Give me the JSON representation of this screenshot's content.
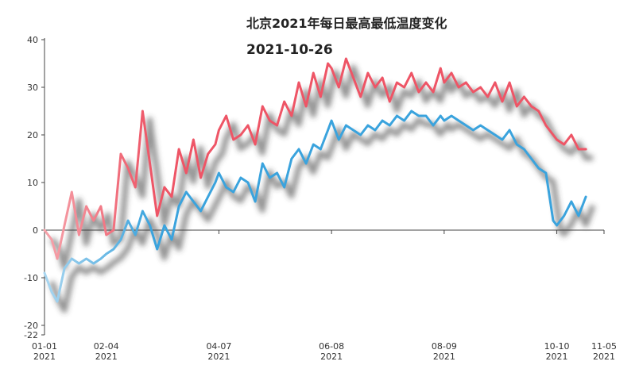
{
  "title": "北京2021年每日最高最低温度变化",
  "current_date": "2021-10-26",
  "chart_data": {
    "type": "line",
    "title": "北京2021年每日最高最低温度变化",
    "xlabel": "",
    "ylabel": "",
    "ylim": [
      -22,
      40
    ],
    "xlim": [
      "2021-01-01",
      "2021-11-05"
    ],
    "y_ticks": [
      "40",
      "30",
      "20",
      "10",
      "0",
      "-10",
      "-20",
      "-22"
    ],
    "x_ticks": [
      {
        "date": "01-01",
        "year": "2021"
      },
      {
        "date": "02-04",
        "year": "2021"
      },
      {
        "date": "04-07",
        "year": "2021"
      },
      {
        "date": "06-08",
        "year": "2021"
      },
      {
        "date": "08-09",
        "year": "2021"
      },
      {
        "date": "10-10",
        "year": "2021"
      },
      {
        "date": "11-05",
        "year": "2021"
      }
    ],
    "grid": false,
    "series": [
      {
        "name": "",
        "color": "#ee5566",
        "x": [
          "2021-01-01",
          "2021-01-05",
          "2021-01-08",
          "2021-01-12",
          "2021-01-16",
          "2021-01-20",
          "2021-01-24",
          "2021-01-28",
          "2021-02-01",
          "2021-02-04",
          "2021-02-08",
          "2021-02-12",
          "2021-02-16",
          "2021-02-20",
          "2021-02-24",
          "2021-02-28",
          "2021-03-04",
          "2021-03-08",
          "2021-03-12",
          "2021-03-16",
          "2021-03-20",
          "2021-03-24",
          "2021-03-28",
          "2021-04-01",
          "2021-04-05",
          "2021-04-07",
          "2021-04-11",
          "2021-04-15",
          "2021-04-19",
          "2021-04-23",
          "2021-04-27",
          "2021-05-01",
          "2021-05-05",
          "2021-05-09",
          "2021-05-13",
          "2021-05-17",
          "2021-05-21",
          "2021-05-25",
          "2021-05-29",
          "2021-06-02",
          "2021-06-06",
          "2021-06-08",
          "2021-06-12",
          "2021-06-16",
          "2021-06-20",
          "2021-06-24",
          "2021-06-28",
          "2021-07-02",
          "2021-07-06",
          "2021-07-10",
          "2021-07-14",
          "2021-07-18",
          "2021-07-22",
          "2021-07-26",
          "2021-07-30",
          "2021-08-03",
          "2021-08-07",
          "2021-08-09",
          "2021-08-13",
          "2021-08-17",
          "2021-08-21",
          "2021-08-25",
          "2021-08-29",
          "2021-09-02",
          "2021-09-06",
          "2021-09-10",
          "2021-09-14",
          "2021-09-18",
          "2021-09-22",
          "2021-09-26",
          "2021-09-30",
          "2021-10-04",
          "2021-10-08",
          "2021-10-10",
          "2021-10-14",
          "2021-10-18",
          "2021-10-22",
          "2021-10-26"
        ],
        "values": [
          0,
          -2,
          -6,
          1,
          8,
          -1,
          5,
          2,
          5,
          -1,
          0,
          16,
          13,
          9,
          25,
          14,
          3,
          9,
          7,
          17,
          12,
          19,
          11,
          16,
          18,
          21,
          24,
          19,
          20,
          22,
          18,
          26,
          23,
          22,
          27,
          24,
          31,
          26,
          33,
          28,
          35,
          34,
          30,
          36,
          32,
          28,
          33,
          30,
          32,
          27,
          31,
          30,
          33,
          29,
          31,
          29,
          34,
          31,
          33,
          30,
          31,
          29,
          30,
          28,
          31,
          27,
          31,
          26,
          28,
          26,
          25,
          22,
          20,
          19,
          18,
          20,
          17,
          17
        ]
      },
      {
        "name": "",
        "color": "#3aa3dd",
        "x": [
          "2021-01-01",
          "2021-01-05",
          "2021-01-08",
          "2021-01-12",
          "2021-01-16",
          "2021-01-20",
          "2021-01-24",
          "2021-01-28",
          "2021-02-01",
          "2021-02-04",
          "2021-02-08",
          "2021-02-12",
          "2021-02-16",
          "2021-02-20",
          "2021-02-24",
          "2021-02-28",
          "2021-03-04",
          "2021-03-08",
          "2021-03-12",
          "2021-03-16",
          "2021-03-20",
          "2021-03-24",
          "2021-03-28",
          "2021-04-01",
          "2021-04-05",
          "2021-04-07",
          "2021-04-11",
          "2021-04-15",
          "2021-04-19",
          "2021-04-23",
          "2021-04-27",
          "2021-05-01",
          "2021-05-05",
          "2021-05-09",
          "2021-05-13",
          "2021-05-17",
          "2021-05-21",
          "2021-05-25",
          "2021-05-29",
          "2021-06-02",
          "2021-06-06",
          "2021-06-08",
          "2021-06-12",
          "2021-06-16",
          "2021-06-20",
          "2021-06-24",
          "2021-06-28",
          "2021-07-02",
          "2021-07-06",
          "2021-07-10",
          "2021-07-14",
          "2021-07-18",
          "2021-07-22",
          "2021-07-26",
          "2021-07-30",
          "2021-08-03",
          "2021-08-07",
          "2021-08-09",
          "2021-08-13",
          "2021-08-17",
          "2021-08-21",
          "2021-08-25",
          "2021-08-29",
          "2021-09-02",
          "2021-09-06",
          "2021-09-10",
          "2021-09-14",
          "2021-09-18",
          "2021-09-22",
          "2021-09-26",
          "2021-09-30",
          "2021-10-04",
          "2021-10-08",
          "2021-10-10",
          "2021-10-14",
          "2021-10-18",
          "2021-10-22",
          "2021-10-26"
        ],
        "values": [
          -9,
          -13,
          -15,
          -8,
          -6,
          -7,
          -6,
          -7,
          -6,
          -5,
          -4,
          -2,
          2,
          -1,
          4,
          1,
          -4,
          1,
          -2,
          5,
          8,
          6,
          4,
          7,
          10,
          12,
          9,
          8,
          11,
          10,
          6,
          14,
          11,
          12,
          9,
          15,
          17,
          14,
          18,
          17,
          21,
          23,
          19,
          22,
          21,
          20,
          22,
          21,
          23,
          22,
          24,
          23,
          25,
          24,
          24,
          22,
          24,
          23,
          24,
          23,
          22,
          21,
          22,
          21,
          20,
          19,
          21,
          18,
          17,
          15,
          13,
          12,
          2,
          1,
          3,
          6,
          3,
          7
        ]
      }
    ]
  }
}
